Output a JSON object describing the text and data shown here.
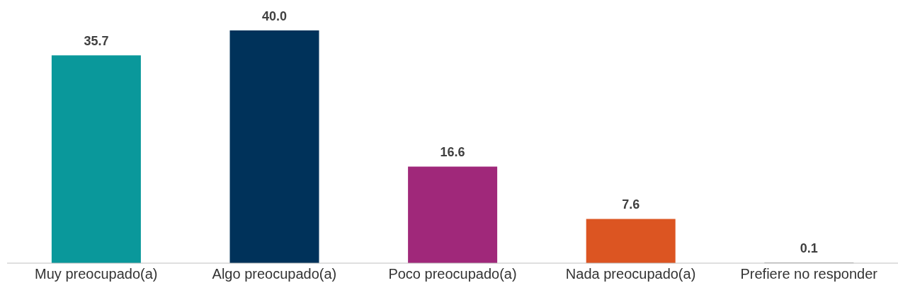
{
  "chart_data": {
    "type": "bar",
    "categories": [
      "Muy preocupado(a)",
      "Algo preocupado(a)",
      "Poco preocupado(a)",
      "Nada preocupado(a)",
      "Prefiere no responder"
    ],
    "values": [
      35.7,
      40.0,
      16.6,
      7.6,
      0.1
    ],
    "colors": [
      "#0a989b",
      "#00325a",
      "#a0287a",
      "#dc5522",
      "#7f7f7f"
    ],
    "value_labels": [
      "35.7",
      "40.0",
      "16.6",
      "7.6",
      "0.1"
    ],
    "grid": false,
    "legend": false
  }
}
